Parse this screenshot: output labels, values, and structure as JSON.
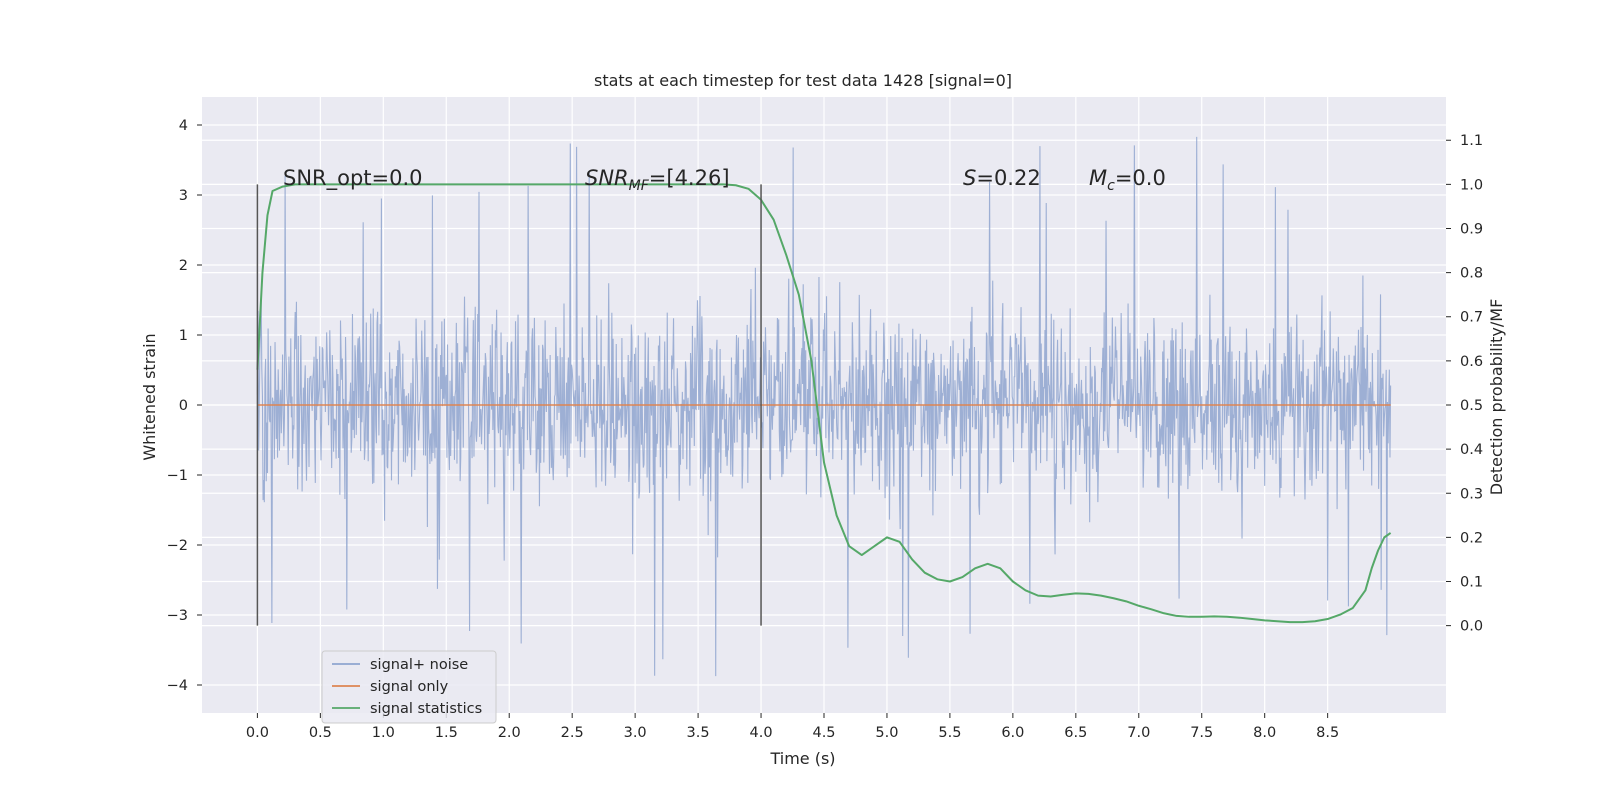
{
  "chart_data": {
    "type": "line",
    "title": "stats at each timestep for test data 1428 [signal=0]",
    "xlabel": "Time (s)",
    "ylabel_left": "Whitened strain",
    "ylabel_right": "Detection probability/MF",
    "xlim": [
      -0.44,
      9.44
    ],
    "ylim_left": [
      -4.4,
      4.4
    ],
    "ylim_right": [
      -0.198,
      1.198
    ],
    "x_ticks": [
      "0.0",
      "0.5",
      "1.0",
      "1.5",
      "2.0",
      "2.5",
      "3.0",
      "3.5",
      "4.0",
      "4.5",
      "5.0",
      "5.5",
      "6.0",
      "6.5",
      "7.0",
      "7.5",
      "8.0",
      "8.5"
    ],
    "y_ticks_left": [
      "4",
      "3",
      "2",
      "1",
      "0",
      "−1",
      "−2",
      "−3",
      "−4"
    ],
    "y_ticks_right": [
      "1.1",
      "1.0",
      "0.9",
      "0.8",
      "0.7",
      "0.6",
      "0.5",
      "0.4",
      "0.3",
      "0.2",
      "0.1",
      "0.0"
    ],
    "grid": true,
    "legend_position": "lower-left",
    "colors": {
      "background": "#eaeaf2",
      "noise": "#8fa5cf",
      "signal_only": "#dd8452",
      "statistics": "#55a868",
      "markers": "#555555"
    },
    "annotations": {
      "snr_opt": "SNR_opt=0.0",
      "snr_mf_prefix": "SNR",
      "snr_mf_sub": "MF",
      "snr_mf_value": "=[4.26]",
      "s_label": "S",
      "s_value": "=0.22",
      "mc_label": "M",
      "mc_sub": "c",
      "mc_value": "=0.0"
    },
    "series": [
      {
        "name": "signal+ noise",
        "axis": "left",
        "t_range": [
          0.0,
          9.0
        ],
        "core_band": [
          -1.25,
          1.3
        ],
        "typical_peaks": [
          -2.5,
          2.7
        ],
        "extreme_range": [
          -3.95,
          4.0
        ]
      },
      {
        "name": "signal only",
        "axis": "left",
        "t_range": [
          0.0,
          9.0
        ],
        "y": 0.0
      },
      {
        "name": "signal statistics",
        "axis": "right",
        "x": [
          0.0,
          0.04,
          0.08,
          0.12,
          0.2,
          0.3,
          0.5,
          1.0,
          2.0,
          3.0,
          3.5,
          3.7,
          3.8,
          3.9,
          4.0,
          4.1,
          4.2,
          4.3,
          4.4,
          4.5,
          4.6,
          4.7,
          4.8,
          4.9,
          5.0,
          5.1,
          5.2,
          5.3,
          5.4,
          5.5,
          5.6,
          5.7,
          5.8,
          5.9,
          6.0,
          6.1,
          6.2,
          6.3,
          6.4,
          6.5,
          6.6,
          6.7,
          6.8,
          6.9,
          7.0,
          7.1,
          7.2,
          7.3,
          7.4,
          7.5,
          7.6,
          7.7,
          7.8,
          7.9,
          8.0,
          8.1,
          8.2,
          8.3,
          8.4,
          8.5,
          8.6,
          8.7,
          8.8,
          8.85,
          8.9,
          8.95,
          9.0
        ],
        "y": [
          0.58,
          0.8,
          0.93,
          0.985,
          0.995,
          1.0,
          1.0,
          1.0,
          1.0,
          1.0,
          1.0,
          1.0,
          0.998,
          0.99,
          0.965,
          0.92,
          0.84,
          0.75,
          0.6,
          0.37,
          0.25,
          0.18,
          0.16,
          0.18,
          0.2,
          0.19,
          0.15,
          0.12,
          0.105,
          0.1,
          0.11,
          0.13,
          0.14,
          0.13,
          0.1,
          0.08,
          0.068,
          0.066,
          0.07,
          0.073,
          0.072,
          0.068,
          0.062,
          0.055,
          0.045,
          0.037,
          0.028,
          0.022,
          0.02,
          0.02,
          0.021,
          0.02,
          0.018,
          0.015,
          0.012,
          0.01,
          0.008,
          0.008,
          0.01,
          0.015,
          0.025,
          0.04,
          0.08,
          0.13,
          0.17,
          0.2,
          0.21
        ]
      }
    ],
    "marker_lines": [
      0.0,
      4.0
    ]
  }
}
